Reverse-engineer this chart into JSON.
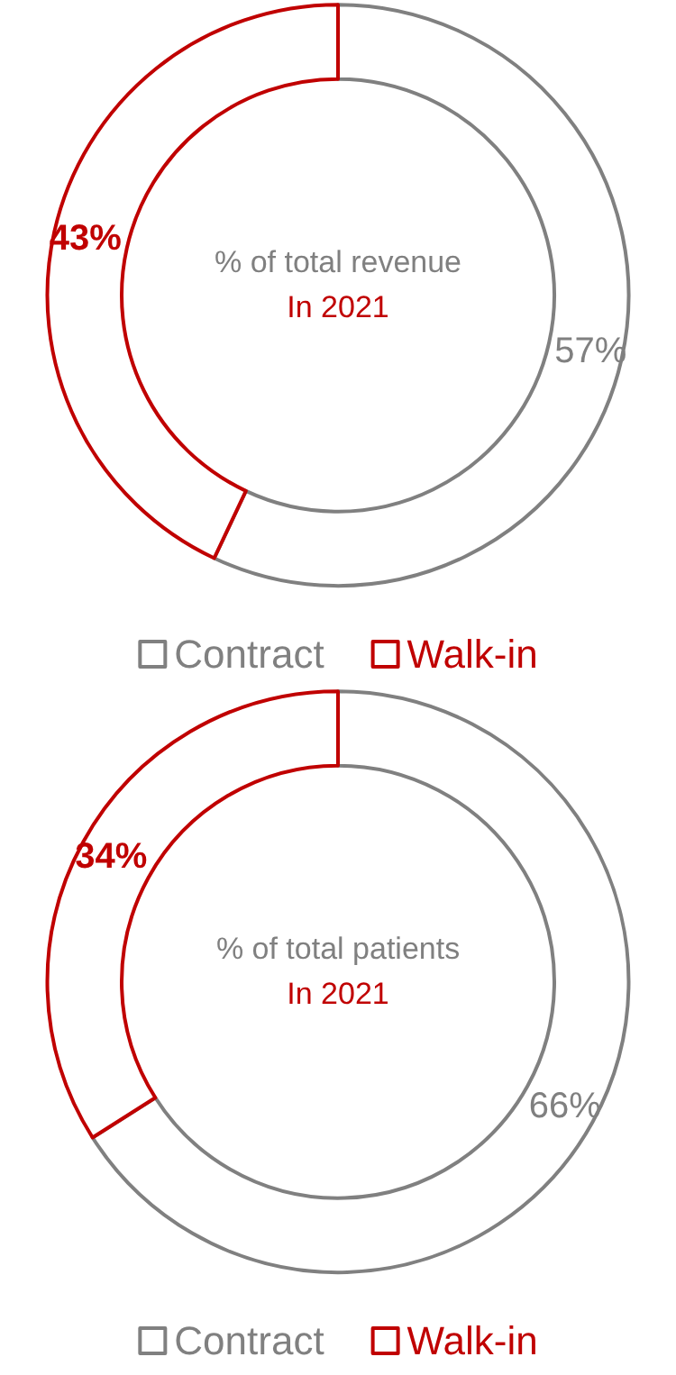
{
  "chart_data": [
    {
      "type": "donut",
      "title": "% of total revenue",
      "subtitle": "In 2021",
      "categories": [
        "Contract",
        "Walk-in"
      ],
      "values": [
        57,
        43
      ],
      "colors": [
        "#808080",
        "#c00000"
      ],
      "value_labels": [
        "57%",
        "43%"
      ],
      "legend": "bottom"
    },
    {
      "type": "donut",
      "title": "% of total patients",
      "subtitle": "In 2021",
      "categories": [
        "Contract",
        "Walk-in"
      ],
      "values": [
        66,
        34
      ],
      "colors": [
        "#808080",
        "#c00000"
      ],
      "value_labels": [
        "66%",
        "34%"
      ],
      "legend": "bottom"
    }
  ]
}
